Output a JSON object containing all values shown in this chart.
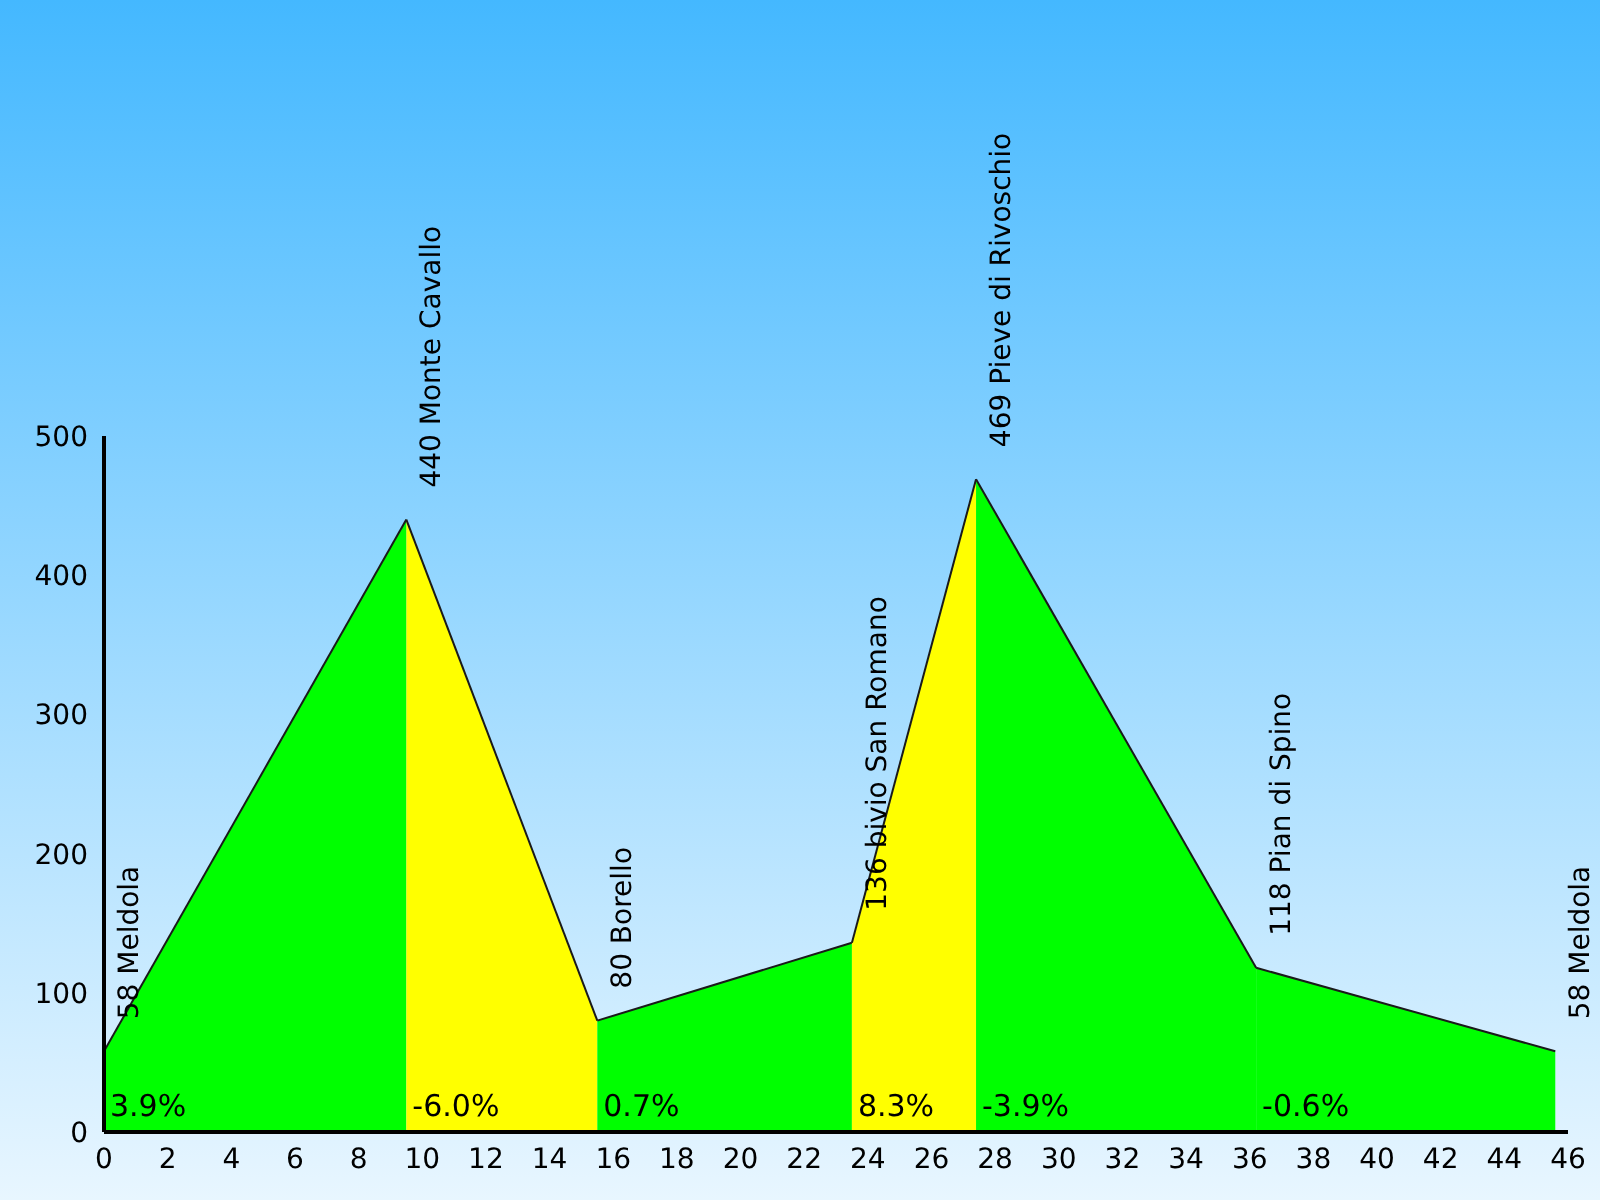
{
  "chart_data": {
    "type": "area",
    "xlim": [
      0,
      46
    ],
    "xticks": [
      0,
      2,
      4,
      6,
      8,
      10,
      12,
      14,
      16,
      18,
      20,
      22,
      24,
      26,
      28,
      30,
      32,
      34,
      36,
      38,
      40,
      42,
      44,
      46
    ],
    "ylim": [
      0,
      500
    ],
    "yticks": [
      0,
      100,
      200,
      300,
      400,
      500
    ],
    "grid": false,
    "legend": false,
    "marker": "none",
    "series": [
      {
        "name": "3.9%",
        "color": "#00ff00",
        "x": [
          0,
          9.5
        ],
        "values": [
          58,
          440
        ]
      },
      {
        "name": "-6.0%",
        "color": "#ffff00",
        "x": [
          9.5,
          15.5
        ],
        "values": [
          440,
          80
        ]
      },
      {
        "name": "0.7%",
        "color": "#00ff00",
        "x": [
          15.5,
          23.5
        ],
        "values": [
          80,
          136
        ]
      },
      {
        "name": "8.3%",
        "color": "#ffff00",
        "x": [
          23.5,
          27.4
        ],
        "values": [
          136,
          469
        ]
      },
      {
        "name": "-3.9%",
        "color": "#00ff00",
        "x": [
          27.4,
          36.2
        ],
        "values": [
          469,
          118
        ]
      },
      {
        "name": "-0.6%",
        "color": "#00ff00",
        "x": [
          36.2,
          45.6
        ],
        "values": [
          118,
          58
        ]
      }
    ],
    "annotations": [
      {
        "text": "58 Meldola",
        "x": 0,
        "y": 58
      },
      {
        "text": "440 Monte Cavallo",
        "x": 9.5,
        "y": 440
      },
      {
        "text": "80 Borello",
        "x": 15.5,
        "y": 80
      },
      {
        "text": "136 bivio San Romano",
        "x": 23.5,
        "y": 136
      },
      {
        "text": "469 Pieve di Rivoschio",
        "x": 27.4,
        "y": 469
      },
      {
        "text": "118 Pian di Spino",
        "x": 36.2,
        "y": 118
      },
      {
        "text": "58 Meldola",
        "x": 45.6,
        "y": 58
      }
    ]
  }
}
